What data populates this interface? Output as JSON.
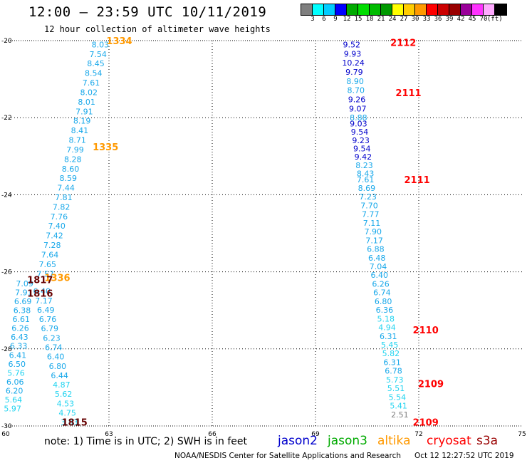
{
  "header": {
    "title": "12:00 – 23:59 UTC 10/11/2019",
    "subtitle": "12 hour collection of altimeter wave heights"
  },
  "legend": {
    "swatches": [
      {
        "color": "#7f7f7f",
        "label": ""
      },
      {
        "color": "#00ffff",
        "label": "3"
      },
      {
        "color": "#00ccff",
        "label": "6"
      },
      {
        "color": "#0000ff",
        "label": "9"
      },
      {
        "color": "#00aa00",
        "label": "12"
      },
      {
        "color": "#00dd00",
        "label": "15"
      },
      {
        "color": "#00bb00",
        "label": "18"
      },
      {
        "color": "#009900",
        "label": "21"
      },
      {
        "color": "#ffff00",
        "label": "24"
      },
      {
        "color": "#ffcc00",
        "label": "27"
      },
      {
        "color": "#ff9900",
        "label": "30"
      },
      {
        "color": "#ff0000",
        "label": "33"
      },
      {
        "color": "#cc0000",
        "label": "36"
      },
      {
        "color": "#990000",
        "label": "39"
      },
      {
        "color": "#990099",
        "label": "42"
      },
      {
        "color": "#ff33ff",
        "label": "45"
      },
      {
        "color": "#ffaaff",
        "label": "70"
      },
      {
        "color": "#000000",
        "label": ""
      }
    ],
    "unit": "(ft)"
  },
  "map": {
    "lon_range": [
      60,
      75
    ],
    "lat_range": [
      -30,
      -20
    ],
    "x_ticks": [
      "60",
      "63",
      "66",
      "69",
      "72",
      "75"
    ],
    "y_ticks": [
      "-20",
      "-22",
      "-24",
      "-26",
      "-28",
      "-30"
    ],
    "grid_lon": [
      63,
      66,
      69,
      72
    ],
    "grid_lat": [
      -22,
      -24,
      -26,
      -28
    ]
  },
  "chart_data": {
    "type": "scatter",
    "title": "12:00 – 23:59 UTC 10/11/2019",
    "subtitle": "12 hour collection of altimeter wave heights",
    "xlim": [
      60,
      75
    ],
    "ylim": [
      -30,
      -20
    ],
    "grid": true,
    "tracks": [
      {
        "lon_start": 62.75,
        "lon_end": 61.15,
        "lat_start": -20.1,
        "lat_end": -26.05,
        "values": [
          "8.03",
          "7.54",
          "8.45",
          "8.54",
          "7.61",
          "8.02",
          "8.01",
          "7.91",
          "8.19",
          "8.41",
          "8.71",
          "7.99",
          "8.28",
          "8.60",
          "8.59",
          "7.44",
          "7.81",
          "7.82",
          "7.76",
          "7.40",
          "7.42",
          "7.28",
          "7.64",
          "7.65",
          "7.57"
        ]
      },
      {
        "lon_start": 60.55,
        "lon_end": 60.2,
        "lat_start": -26.3,
        "lat_end": -29.55,
        "values": [
          "7.09",
          "7.91",
          "6.69",
          "6.38",
          "6.61",
          "6.26",
          "6.43",
          "6.33",
          "6.41",
          "6.50",
          "5.76",
          "6.06",
          "6.20",
          "5.64",
          "5.97"
        ]
      },
      {
        "lon_start": 61.05,
        "lon_end": 61.85,
        "lat_start": -26.5,
        "lat_end": -29.9,
        "values": [
          "6.40",
          "7.17",
          "6.49",
          "6.76",
          "6.79",
          "6.23",
          "6.74",
          "6.40",
          "6.80",
          "6.44",
          "4.87",
          "5.62",
          "4.53",
          "4.75",
          "3.83"
        ]
      },
      {
        "lon_start": 70.05,
        "lon_end": 70.25,
        "lat_start": -20.1,
        "lat_end": -22.0,
        "values": [
          "9.52",
          "9.93",
          "10.24",
          "9.79",
          "8.90",
          "8.70",
          "9.26",
          "9.07",
          "8.88"
        ]
      },
      {
        "lon_start": 70.25,
        "lon_end": 70.45,
        "lat_start": -22.15,
        "lat_end": -23.45,
        "values": [
          "9.03",
          "9.54",
          "9.23",
          "9.54",
          "9.42",
          "8.23",
          "8.43"
        ]
      },
      {
        "lon_start": 70.45,
        "lon_end": 71.45,
        "lat_start": -23.6,
        "lat_end": -29.7,
        "values": [
          "7.61",
          "8.69",
          "7.23",
          "7.70",
          "7.77",
          "7.11",
          "7.90",
          "7.17",
          "6.88",
          "6.48",
          "7.04",
          "6.40",
          "6.26",
          "6.74",
          "6.80",
          "6.36",
          "5.18",
          "4.94",
          "6.31",
          "5.45",
          "5.82",
          "6.31",
          "6.78",
          "5.73",
          "5.51",
          "5.54",
          "5.41",
          "2.51"
        ]
      }
    ],
    "time_labels": [
      {
        "text": "1334",
        "lon": 63.3,
        "lat": -20.0,
        "color": "#ff9900"
      },
      {
        "text": "1335",
        "lon": 62.9,
        "lat": -22.75,
        "color": "#ff9900"
      },
      {
        "text": "1336",
        "lon": 61.5,
        "lat": -26.15,
        "color": "#ff9900"
      },
      {
        "text": "1817",
        "lon": 61.0,
        "lat": -26.2,
        "color": "#660000"
      },
      {
        "text": "1816",
        "lon": 61.0,
        "lat": -26.55,
        "color": "#660000"
      },
      {
        "text": "1815",
        "lon": 62.0,
        "lat": -29.9,
        "color": "#660000"
      },
      {
        "text": "2112",
        "lon": 71.55,
        "lat": -20.05,
        "color": "#ff0000"
      },
      {
        "text": "2111",
        "lon": 71.7,
        "lat": -21.35,
        "color": "#ff0000"
      },
      {
        "text": "2111",
        "lon": 71.95,
        "lat": -23.6,
        "color": "#ff0000"
      },
      {
        "text": "2110",
        "lon": 72.2,
        "lat": -27.5,
        "color": "#ff0000"
      },
      {
        "text": "2109",
        "lon": 72.35,
        "lat": -28.9,
        "color": "#ff0000"
      },
      {
        "text": "2109",
        "lon": 72.2,
        "lat": -29.9,
        "color": "#ff0000"
      }
    ]
  },
  "footer": {
    "note": "note:  1) Time is in UTC;  2) SWH is in feet",
    "satellites": [
      {
        "name": "jason2",
        "color": "#0000cc"
      },
      {
        "name": "jason3",
        "color": "#00aa00"
      },
      {
        "name": "altika",
        "color": "#ff9900"
      },
      {
        "name": "cryosat",
        "color": "#ff0000"
      },
      {
        "name": "s3a",
        "color": "#990000"
      }
    ],
    "credit": "NOAA/NESDIS Center for Satellite Applications and Research",
    "timestamp": "Oct 12 12:27:52 UTC 2019"
  }
}
